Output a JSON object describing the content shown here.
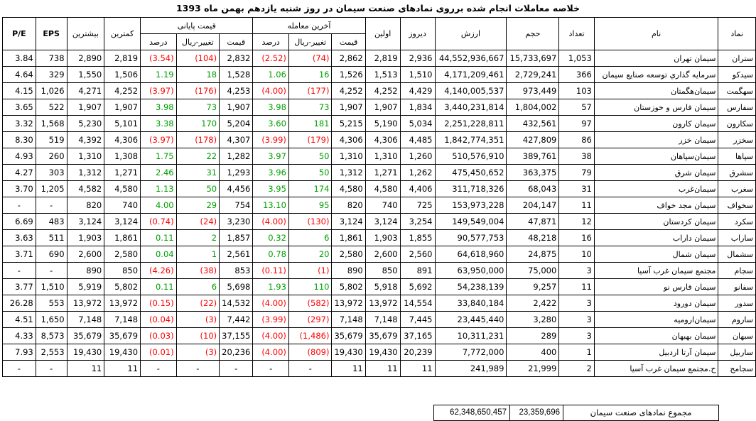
{
  "title": "خلاصه معاملات انجام شده برروی نمادهای صنعت سیمان در روز شنبه یازدهم بهمن ماه 1393",
  "group_headers": {
    "last_trade": "آخرین معامله",
    "closing_price": "قیمت پایانی"
  },
  "columns": {
    "symbol": "نماد",
    "name": "نام",
    "count": "تعداد",
    "volume": "حجم",
    "value": "ارزش",
    "yesterday": "دیروز",
    "first": "اولین",
    "last_price": "قیمت",
    "last_change": "تغییر-ریال",
    "last_percent": "درصد",
    "close_price": "قیمت",
    "close_change": "تغییر-ریال",
    "close_percent": "درصد",
    "min": "کمترین",
    "max": "بیشترین",
    "eps": "EPS",
    "pe": "P/E"
  },
  "rows": [
    {
      "symbol": "ستران",
      "name": "سیمان تهران",
      "count": "1,053",
      "volume": "15,733,697",
      "value": "44,552,936,667",
      "yesterday": "2,936",
      "first": "2,819",
      "last_price": "2,862",
      "last_change": "(74)",
      "last_percent": "(2.52)",
      "close_price": "2,832",
      "close_change": "(104)",
      "close_percent": "(3.54)",
      "min": "2,819",
      "max": "2,890",
      "eps": "738",
      "pe": "3.84"
    },
    {
      "symbol": "سیدکو",
      "name": "سرمایه گذاري توسعه صنایع سیمان",
      "count": "366",
      "volume": "2,729,241",
      "value": "4,171,209,461",
      "yesterday": "1,510",
      "first": "1,513",
      "last_price": "1,526",
      "last_change": "16",
      "last_percent": "1.06",
      "close_price": "1,528",
      "close_change": "18",
      "close_percent": "1.19",
      "min": "1,506",
      "max": "1,550",
      "eps": "329",
      "pe": "4.64"
    },
    {
      "symbol": "سهگمت",
      "name": "سیمان‌هگمتان",
      "count": "103",
      "volume": "973,449",
      "value": "4,140,005,537",
      "yesterday": "4,429",
      "first": "4,252",
      "last_price": "4,252",
      "last_change": "(177)",
      "last_percent": "(4.00)",
      "close_price": "4,253",
      "close_change": "(176)",
      "close_percent": "(3.97)",
      "min": "4,252",
      "max": "4,271",
      "eps": "1,026",
      "pe": "4.15"
    },
    {
      "symbol": "سفارس",
      "name": "سیمان فارس و خوزستان",
      "count": "57",
      "volume": "1,804,002",
      "value": "3,440,231,814",
      "yesterday": "1,834",
      "first": "1,907",
      "last_price": "1,907",
      "last_change": "73",
      "last_percent": "3.98",
      "close_price": "1,907",
      "close_change": "73",
      "close_percent": "3.98",
      "min": "1,907",
      "max": "1,907",
      "eps": "522",
      "pe": "3.65"
    },
    {
      "symbol": "سکارون",
      "name": "سیمان کارون",
      "count": "97",
      "volume": "432,561",
      "value": "2,251,228,811",
      "yesterday": "5,034",
      "first": "5,190",
      "last_price": "5,215",
      "last_change": "181",
      "last_percent": "3.60",
      "close_price": "5,204",
      "close_change": "170",
      "close_percent": "3.38",
      "min": "5,101",
      "max": "5,230",
      "eps": "1,568",
      "pe": "3.32"
    },
    {
      "symbol": "سخزر",
      "name": "سیمان خزر",
      "count": "86",
      "volume": "427,809",
      "value": "1,842,774,351",
      "yesterday": "4,485",
      "first": "4,306",
      "last_price": "4,306",
      "last_change": "(179)",
      "last_percent": "(3.99)",
      "close_price": "4,307",
      "close_change": "(178)",
      "close_percent": "(3.97)",
      "min": "4,306",
      "max": "4,392",
      "eps": "519",
      "pe": "8.30"
    },
    {
      "symbol": "سپاها",
      "name": "سیمان‌سپاهان",
      "count": "38",
      "volume": "389,761",
      "value": "510,576,910",
      "yesterday": "1,260",
      "first": "1,310",
      "last_price": "1,310",
      "last_change": "50",
      "last_percent": "3.97",
      "close_price": "1,282",
      "close_change": "22",
      "close_percent": "1.75",
      "min": "1,308",
      "max": "1,310",
      "eps": "260",
      "pe": "4.93"
    },
    {
      "symbol": "سشرق",
      "name": "سیمان شرق",
      "count": "79",
      "volume": "363,375",
      "value": "475,450,652",
      "yesterday": "1,262",
      "first": "1,271",
      "last_price": "1,312",
      "last_change": "50",
      "last_percent": "3.96",
      "close_price": "1,293",
      "close_change": "31",
      "close_percent": "2.46",
      "min": "1,271",
      "max": "1,312",
      "eps": "303",
      "pe": "4.27"
    },
    {
      "symbol": "سغرب",
      "name": "سیمان‌غرب",
      "count": "31",
      "volume": "68,043",
      "value": "311,718,326",
      "yesterday": "4,406",
      "first": "4,580",
      "last_price": "4,580",
      "last_change": "174",
      "last_percent": "3.95",
      "close_price": "4,456",
      "close_change": "50",
      "close_percent": "1.13",
      "min": "4,580",
      "max": "4,582",
      "eps": "1,205",
      "pe": "3.70"
    },
    {
      "symbol": "سخواف",
      "name": "سیمان مجد خواف",
      "count": "11",
      "volume": "204,147",
      "value": "153,973,228",
      "yesterday": "725",
      "first": "740",
      "last_price": "820",
      "last_change": "95",
      "last_percent": "13.10",
      "close_price": "754",
      "close_change": "29",
      "close_percent": "4.00",
      "min": "740",
      "max": "820",
      "eps": "-",
      "pe": "-"
    },
    {
      "symbol": "سکرد",
      "name": "سیمان کردستان",
      "count": "12",
      "volume": "47,871",
      "value": "149,549,004",
      "yesterday": "3,254",
      "first": "3,124",
      "last_price": "3,124",
      "last_change": "(130)",
      "last_percent": "(4.00)",
      "close_price": "3,230",
      "close_change": "(24)",
      "close_percent": "(0.74)",
      "min": "3,124",
      "max": "3,124",
      "eps": "483",
      "pe": "6.69"
    },
    {
      "symbol": "ساراب",
      "name": "سیمان داراب",
      "count": "16",
      "volume": "48,218",
      "value": "90,577,753",
      "yesterday": "1,855",
      "first": "1,903",
      "last_price": "1,861",
      "last_change": "6",
      "last_percent": "0.32",
      "close_price": "1,857",
      "close_change": "2",
      "close_percent": "0.11",
      "min": "1,861",
      "max": "1,903",
      "eps": "511",
      "pe": "3.63"
    },
    {
      "symbol": "سشمال",
      "name": "سیمان شمال",
      "count": "10",
      "volume": "24,875",
      "value": "64,618,960",
      "yesterday": "2,560",
      "first": "2,600",
      "last_price": "2,580",
      "last_change": "20",
      "last_percent": "0.78",
      "close_price": "2,561",
      "close_change": "1",
      "close_percent": "0.04",
      "min": "2,580",
      "max": "2,600",
      "eps": "690",
      "pe": "3.71"
    },
    {
      "symbol": "سجام",
      "name": "مجتمع سیمان غرب آسیا",
      "count": "3",
      "volume": "75,000",
      "value": "63,950,000",
      "yesterday": "891",
      "first": "850",
      "last_price": "890",
      "last_change": "(1)",
      "last_percent": "(0.11)",
      "close_price": "853",
      "close_change": "(38)",
      "close_percent": "(4.26)",
      "min": "850",
      "max": "890",
      "eps": "-",
      "pe": "-"
    },
    {
      "symbol": "سفانو",
      "name": "سیمان فارس نو",
      "count": "11",
      "volume": "9,257",
      "value": "54,238,139",
      "yesterday": "5,692",
      "first": "5,918",
      "last_price": "5,802",
      "last_change": "110",
      "last_percent": "1.93",
      "close_price": "5,698",
      "close_change": "6",
      "close_percent": "0.11",
      "min": "5,802",
      "max": "5,919",
      "eps": "1,510",
      "pe": "3.77"
    },
    {
      "symbol": "سدور",
      "name": "سیمان دورود",
      "count": "3",
      "volume": "2,422",
      "value": "33,840,184",
      "yesterday": "14,554",
      "first": "13,972",
      "last_price": "13,972",
      "last_change": "(582)",
      "last_percent": "(4.00)",
      "close_price": "14,532",
      "close_change": "(22)",
      "close_percent": "(0.15)",
      "min": "13,972",
      "max": "13,972",
      "eps": "553",
      "pe": "26.28"
    },
    {
      "symbol": "ساروم",
      "name": "سیمان‌ارومیه",
      "count": "3",
      "volume": "3,280",
      "value": "23,445,440",
      "yesterday": "7,445",
      "first": "7,148",
      "last_price": "7,148",
      "last_change": "(297)",
      "last_percent": "(3.99)",
      "close_price": "7,442",
      "close_change": "(3)",
      "close_percent": "(0.04)",
      "min": "7,148",
      "max": "7,148",
      "eps": "1,650",
      "pe": "4.51"
    },
    {
      "symbol": "سبهان",
      "name": "سیمان بهبهان",
      "count": "3",
      "volume": "289",
      "value": "10,311,231",
      "yesterday": "37,165",
      "first": "35,679",
      "last_price": "35,679",
      "last_change": "(1,486)",
      "last_percent": "(4.00)",
      "close_price": "37,155",
      "close_change": "(10)",
      "close_percent": "(0.03)",
      "min": "35,679",
      "max": "35,679",
      "eps": "8,573",
      "pe": "4.33"
    },
    {
      "symbol": "ساربیل",
      "name": "سیمان آرتا اردبیل",
      "count": "1",
      "volume": "400",
      "value": "7,772,000",
      "yesterday": "20,239",
      "first": "19,430",
      "last_price": "19,430",
      "last_change": "(809)",
      "last_percent": "(4.00)",
      "close_price": "20,236",
      "close_change": "(3)",
      "close_percent": "(0.01)",
      "min": "19,430",
      "max": "19,430",
      "eps": "2,553",
      "pe": "7.93"
    },
    {
      "symbol": "سجامح",
      "name": "ح.مجتمع سیمان غرب آسیا",
      "count": "2",
      "volume": "21,999",
      "value": "241,989",
      "yesterday": "11",
      "first": "11",
      "last_price": "11",
      "last_change": "-",
      "last_percent": "-",
      "close_price": "-",
      "close_change": "-",
      "close_percent": "-",
      "min": "11",
      "max": "11",
      "eps": "-",
      "pe": "-"
    }
  ],
  "summary": {
    "label": "مجموع نمادهای صنعت سیمان",
    "volume": "23,359,696",
    "value": "62,348,650,457"
  },
  "colors": {
    "negative": "#ff0000",
    "positive": "#00a000"
  }
}
